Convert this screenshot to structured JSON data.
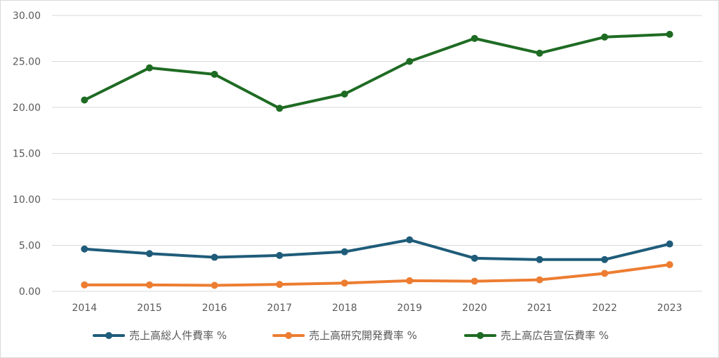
{
  "chart_data": {
    "type": "line",
    "title": "",
    "xlabel": "",
    "ylabel": "",
    "categories": [
      "2014",
      "2015",
      "2016",
      "2017",
      "2018",
      "2019",
      "2020",
      "2021",
      "2022",
      "2023"
    ],
    "ylim": [
      0,
      30
    ],
    "yticks": [
      "0.00",
      "5.00",
      "10.00",
      "15.00",
      "20.00",
      "25.00",
      "30.00"
    ],
    "grid": true,
    "legend_position": "bottom",
    "series": [
      {
        "name": "売上高総人件費率 %",
        "color": "#1f5c7a",
        "values": [
          4.6,
          4.1,
          3.7,
          3.9,
          4.3,
          5.6,
          3.6,
          3.45,
          3.45,
          5.15
        ]
      },
      {
        "name": "売上高研究開発費率 %",
        "color": "#ed7d31",
        "values": [
          0.7,
          0.7,
          0.65,
          0.75,
          0.9,
          1.15,
          1.1,
          1.25,
          1.95,
          2.9
        ]
      },
      {
        "name": "売上高広告宣伝費率 %",
        "color": "#1e6b23",
        "values": [
          20.8,
          24.3,
          23.6,
          19.9,
          21.45,
          25.0,
          27.5,
          25.9,
          27.65,
          27.95
        ]
      }
    ]
  }
}
